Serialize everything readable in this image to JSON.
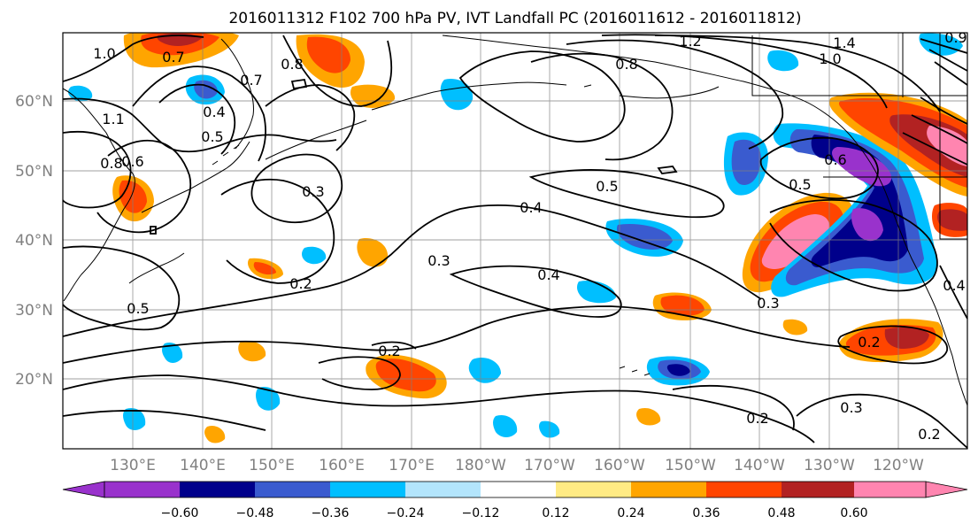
{
  "title": "2016011312 F102 700 hPa PV, IVT Landfall PC (2016011612 - 2016011812)",
  "lat_labels": [
    "60°N",
    "50°N",
    "40°N",
    "30°N",
    "20°N"
  ],
  "lon_labels": [
    "130°E",
    "140°E",
    "150°E",
    "160°E",
    "170°E",
    "180°W",
    "170°W",
    "160°W",
    "150°W",
    "140°W",
    "130°W",
    "120°W"
  ],
  "contour_labels": [
    "1.0",
    "0.7",
    "0.8",
    "1.2",
    "1.4",
    "1.0",
    "0.8",
    "0.7",
    "0.4",
    "0.5",
    "0.8",
    "0.6",
    "0.3",
    "0.5",
    "0.4",
    "0.3",
    "0.2",
    "0.5",
    "0.4",
    "0.5",
    "0.6",
    "1.1",
    "0.2",
    "0.3",
    "0.2",
    "0.2",
    "0.3",
    "0.2",
    "0.4",
    "0.9"
  ],
  "colorbar": {
    "tick_labels": [
      "−0.60",
      "−0.48",
      "−0.36",
      "−0.24",
      "−0.12",
      "0.12",
      "0.24",
      "0.36",
      "0.48",
      "0.60"
    ],
    "colors": [
      "#9932cc",
      "#00008b",
      "#3a5bcf",
      "#00bfff",
      "#b3e5fc",
      "#ffffff",
      "#ffeb84",
      "#ffa500",
      "#ff4500",
      "#b22222",
      "#ff85b0"
    ]
  },
  "colors": {
    "axis_label": "#808080",
    "contour": "#000000",
    "grid": "#808080"
  }
}
